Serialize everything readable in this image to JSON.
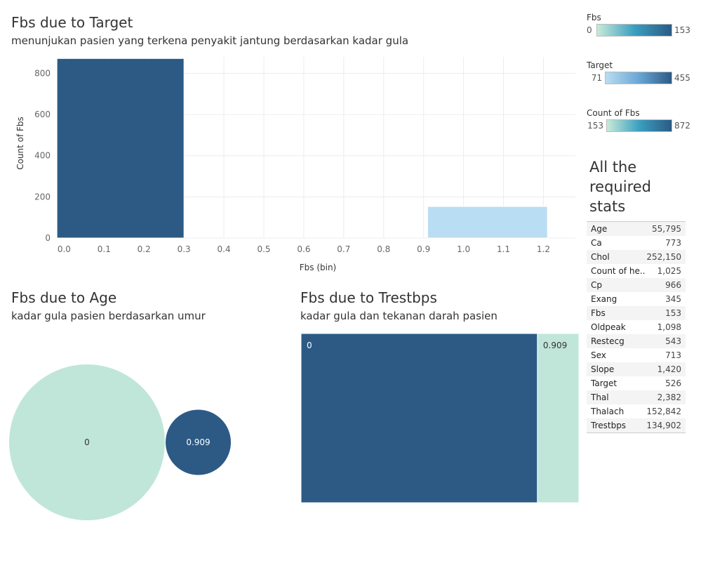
{
  "panel1": {
    "title": "Fbs due to Target",
    "subtitle": "menunjukan pasien yang terkena penyakit jantung berdasarkan kadar gula"
  },
  "panel2": {
    "title": "Fbs due to Age",
    "subtitle": "kadar gula pasien berdasarkan umur"
  },
  "panel3": {
    "title": "Fbs due to Trestbps",
    "subtitle": "kadar gula dan tekanan darah pasien"
  },
  "legends": [
    {
      "title": "Fbs",
      "min": "0",
      "max": "153",
      "color_start": "#c8ead8",
      "color_mid": "#3a9fc0",
      "color_end": "#2c5a85"
    },
    {
      "title": "Target",
      "min": "71",
      "max": "455",
      "color_start": "#b9ddf2",
      "color_mid": "#6ba7d6",
      "color_end": "#2c5a85"
    },
    {
      "title": "Count of Fbs",
      "min": "153",
      "max": "872",
      "color_start": "#c8ead8",
      "color_mid": "#3a9fc0",
      "color_end": "#2c5a85"
    }
  ],
  "stats": {
    "title": "All the required stats",
    "rows": [
      {
        "name": "Age",
        "value": "55,795"
      },
      {
        "name": "Ca",
        "value": "773"
      },
      {
        "name": "Chol",
        "value": "252,150"
      },
      {
        "name": "Count of he..",
        "value": "1,025"
      },
      {
        "name": "Cp",
        "value": "966"
      },
      {
        "name": "Exang",
        "value": "345"
      },
      {
        "name": "Fbs",
        "value": "153"
      },
      {
        "name": "Oldpeak",
        "value": "1,098"
      },
      {
        "name": "Restecg",
        "value": "543"
      },
      {
        "name": "Sex",
        "value": "713"
      },
      {
        "name": "Slope",
        "value": "1,420"
      },
      {
        "name": "Target",
        "value": "526"
      },
      {
        "name": "Thal",
        "value": "2,382"
      },
      {
        "name": "Thalach",
        "value": "152,842"
      },
      {
        "name": "Trestbps",
        "value": "134,902"
      }
    ]
  },
  "chart_data": [
    {
      "type": "bar",
      "title": "Fbs due to Target",
      "xlabel": "Fbs (bin)",
      "ylabel": "Count of Fbs",
      "xlim": [
        -0.02,
        1.28
      ],
      "ylim": [
        0,
        880
      ],
      "x_ticks": [
        "0.0",
        "0.1",
        "0.2",
        "0.3",
        "0.4",
        "0.5",
        "0.6",
        "0.7",
        "0.8",
        "0.9",
        "1.0",
        "1.1",
        "1.2"
      ],
      "y_ticks": [
        0,
        200,
        400,
        600,
        800
      ],
      "bars": [
        {
          "bin_start": -0.018,
          "bin_end": 0.3,
          "value": 872,
          "color": "#2c5a85"
        },
        {
          "bin_start": 0.91,
          "bin_end": 1.21,
          "value": 153,
          "color": "#b9ddf2"
        }
      ]
    },
    {
      "type": "bubble",
      "title": "Fbs due to Age",
      "points": [
        {
          "label": "0",
          "value": 872,
          "color": "#c0e6da",
          "text_color": "#333333"
        },
        {
          "label": "0.909",
          "value": 153,
          "color": "#2c5a85",
          "text_color": "#ffffff"
        }
      ]
    },
    {
      "type": "treemap",
      "title": "Fbs due to Trestbps",
      "cells": [
        {
          "label": "0",
          "value": 872,
          "color": "#2c5a85",
          "text_color": "#ffffff"
        },
        {
          "label": "0.909",
          "value": 153,
          "color": "#c0e6da",
          "text_color": "#333333"
        }
      ]
    }
  ]
}
